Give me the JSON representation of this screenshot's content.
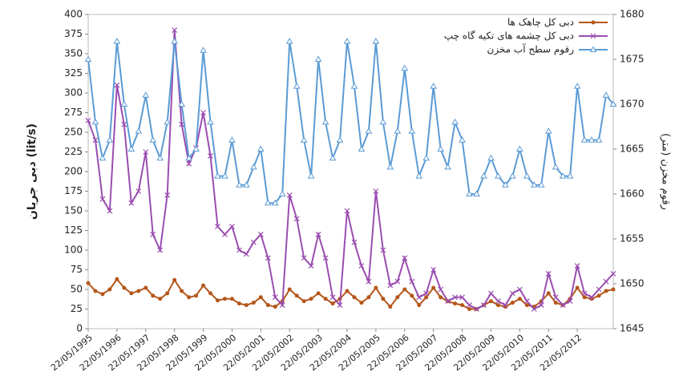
{
  "chart_data": {
    "type": "line",
    "ylabel": "دبی جریان (lit/s)",
    "y2label": "رقوم مخزن (متر)",
    "categories": [
      "22/05/1995",
      null,
      null,
      null,
      "22/05/1996",
      null,
      null,
      null,
      "22/05/1997",
      null,
      null,
      null,
      "22/05/1998",
      null,
      null,
      null,
      "22/05/1999",
      null,
      null,
      null,
      "22/05/2000",
      null,
      null,
      null,
      "22/05/2001",
      null,
      null,
      null,
      "22/05/2002",
      null,
      null,
      null,
      "22/05/2003",
      null,
      null,
      null,
      "22/05/2004",
      null,
      null,
      null,
      "22/05/2005",
      null,
      null,
      null,
      "22/05/2006",
      null,
      null,
      null,
      "22/05/2007",
      null,
      null,
      null,
      "22/05/2008",
      null,
      null,
      null,
      "22/05/2009",
      null,
      null,
      null,
      "22/05/2010",
      null,
      null,
      null,
      "22/05/2011",
      null,
      null,
      null,
      "22/05/2012",
      null,
      null,
      null,
      null,
      null
    ],
    "ylim": [
      0,
      400
    ],
    "yticks": [
      0,
      25,
      50,
      75,
      100,
      125,
      150,
      175,
      200,
      225,
      250,
      275,
      300,
      325,
      350,
      375,
      400
    ],
    "y2lim": [
      1645,
      1680
    ],
    "y2ticks": [
      1645,
      1650,
      1655,
      1660,
      1665,
      1670,
      1675,
      1680
    ],
    "legend": "top-right",
    "series": [
      {
        "name": "دبی کل چاهک ها",
        "color": "#b5561a",
        "marker": "dot",
        "values": [
          58,
          48,
          44,
          50,
          63,
          52,
          45,
          48,
          52,
          42,
          38,
          45,
          62,
          48,
          40,
          42,
          55,
          45,
          36,
          38,
          38,
          32,
          30,
          33,
          40,
          30,
          28,
          35,
          50,
          42,
          35,
          38,
          45,
          38,
          32,
          38,
          48,
          40,
          33,
          40,
          52,
          38,
          28,
          40,
          50,
          42,
          30,
          40,
          52,
          40,
          35,
          32,
          30,
          25,
          25,
          30,
          35,
          30,
          28,
          33,
          38,
          30,
          28,
          35,
          45,
          33,
          30,
          38,
          52,
          40,
          38,
          42,
          48,
          50
        ]
      },
      {
        "name": "دبی کل چشمه های تکیه گاه چپ",
        "color": "#9a4db0",
        "marker": "x",
        "values": [
          265,
          240,
          165,
          150,
          310,
          260,
          160,
          175,
          225,
          120,
          100,
          170,
          380,
          260,
          210,
          230,
          275,
          220,
          130,
          120,
          130,
          100,
          95,
          110,
          120,
          90,
          40,
          30,
          170,
          140,
          90,
          80,
          120,
          90,
          40,
          30,
          150,
          110,
          80,
          60,
          175,
          100,
          55,
          60,
          90,
          60,
          40,
          45,
          75,
          50,
          35,
          40,
          40,
          30,
          25,
          30,
          45,
          35,
          30,
          45,
          50,
          35,
          25,
          30,
          70,
          40,
          30,
          35,
          80,
          45,
          40,
          50,
          60,
          70
        ]
      },
      {
        "name": "رقوم سطح آب مخزن",
        "color": "#5b9bd5",
        "marker": "triangle",
        "axis": "y2",
        "values": [
          1675,
          1668,
          1664,
          1666,
          1677,
          1670,
          1665,
          1667,
          1671,
          1666,
          1664,
          1668,
          1677,
          1670,
          1664,
          1665,
          1676,
          1668,
          1662,
          1662,
          1666,
          1661,
          1661,
          1663,
          1665,
          1659,
          1659,
          1660,
          1677,
          1672,
          1666,
          1662,
          1675,
          1668,
          1664,
          1666,
          1677,
          1672,
          1665,
          1667,
          1677,
          1668,
          1663,
          1667,
          1674,
          1667,
          1662,
          1664,
          1672,
          1665,
          1663,
          1668,
          1666,
          1660,
          1660,
          1662,
          1664,
          1662,
          1661,
          1662,
          1665,
          1662,
          1661,
          1661,
          1667,
          1663,
          1662,
          1662,
          1672,
          1666,
          1666,
          1666,
          1671,
          1670
        ]
      }
    ]
  }
}
